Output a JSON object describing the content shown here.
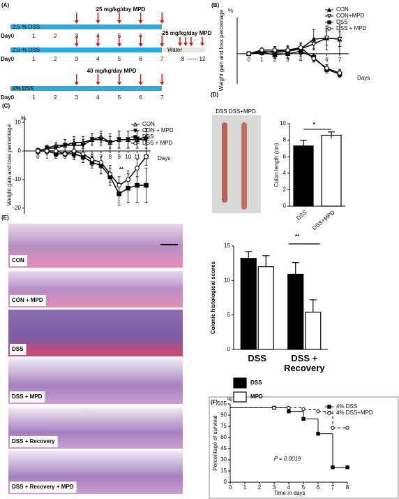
{
  "schematic": {
    "panel": "(A)",
    "day_label": "Day:",
    "rows": [
      {
        "bar_label": "2.5 % DSS",
        "drug_label": "25 mg/kg/day MPD",
        "days": [
          0,
          1,
          2,
          3,
          4,
          5,
          6,
          7
        ]
      },
      {
        "bar_label": "2.5 % DSS",
        "drug_label": "25 mg/kg/day MPD",
        "days": [
          0,
          1,
          2,
          3,
          4,
          5,
          6,
          7
        ],
        "recovery_label": "Water",
        "recovery_days": [
          8,
          12
        ],
        "recovery_separator": "------"
      },
      {
        "bar_label": "4% DSS",
        "drug_label": "40 mg/kg/day MPD",
        "days": [
          0,
          1,
          2,
          3,
          4,
          5,
          6,
          7
        ]
      }
    ]
  },
  "histology": {
    "panel": "(E)",
    "images": [
      "CON",
      "CON + MPD",
      "DSS",
      "DSS + MPD",
      "DSS + Recovery",
      "DSS + Recovery + MPD"
    ]
  },
  "chart_data": [
    {
      "type": "line",
      "panel": "(B)",
      "y_unit": "%",
      "ylabel": "Weight gain and loss percentage",
      "xlabel": "Days",
      "x": [
        0,
        1,
        2,
        3,
        4,
        5,
        6,
        7
      ],
      "xlim": [
        -0.9,
        7.7
      ],
      "xticks": [
        0,
        1,
        2,
        3,
        4,
        5,
        6,
        7
      ],
      "ylim": [
        -25,
        30
      ],
      "legend": "upper right",
      "series": [
        {
          "name": "CON",
          "color": "#000000",
          "marker": "triangle",
          "filled": true,
          "values": [
            0,
            1,
            2,
            3,
            4,
            12,
            13,
            12
          ],
          "errors": [
            1,
            2,
            3,
            4,
            5,
            8,
            10,
            12
          ]
        },
        {
          "name": "CON+MPD",
          "color": "#000000",
          "marker": "triangle-down",
          "filled": false,
          "values": [
            0,
            2,
            1,
            2,
            4,
            8,
            13,
            12
          ],
          "errors": [
            1,
            2,
            3,
            3,
            4,
            5,
            6,
            6
          ]
        },
        {
          "name": "DSS",
          "color": "#000000",
          "marker": "square",
          "filled": true,
          "values": [
            0,
            1,
            -1,
            0,
            2,
            -3,
            -13,
            -17
          ],
          "errors": [
            1,
            2,
            3,
            4,
            4,
            3,
            3,
            3
          ]
        },
        {
          "name": "DSS + MPD",
          "color": "#000000",
          "marker": "circle",
          "filled": false,
          "values": [
            0,
            3,
            3,
            3,
            5,
            -4,
            -12,
            -16
          ],
          "errors": [
            1,
            2,
            3,
            3,
            4,
            3,
            3,
            3
          ]
        }
      ]
    },
    {
      "type": "line",
      "panel": "(C)",
      "y_unit": "%",
      "ylabel": "Weight gain and loss percentage",
      "xlabel": "Days",
      "annotation": "**",
      "x": [
        0,
        1,
        2,
        3,
        4,
        5,
        6,
        7,
        8,
        9,
        10,
        11,
        12
      ],
      "xlim": [
        -1.5,
        12.5
      ],
      "xticks": [
        0,
        1,
        2,
        3,
        4,
        5,
        6,
        7,
        8,
        9,
        10,
        11,
        12
      ],
      "ylim": [
        -22,
        12
      ],
      "yticks": [
        -20,
        -10,
        0,
        10
      ],
      "legend": "upper right",
      "series": [
        {
          "name": "CON",
          "color": "#000000",
          "marker": "triangle",
          "filled": false,
          "values": [
            0,
            1,
            2,
            2,
            3,
            3,
            4,
            5,
            3,
            4,
            4,
            4,
            5
          ],
          "errors": [
            1,
            1,
            1,
            2,
            2,
            2,
            2,
            2,
            3,
            3,
            3,
            3,
            3
          ]
        },
        {
          "name": "CON + MPD",
          "color": "#000000",
          "marker": "triangle-down",
          "filled": true,
          "values": [
            0,
            1,
            1,
            2,
            2,
            2,
            4,
            4,
            3,
            4,
            4,
            4,
            4
          ],
          "errors": [
            1,
            1,
            1,
            2,
            2,
            2,
            2,
            2,
            2,
            3,
            3,
            3,
            3
          ]
        },
        {
          "name": "DSS",
          "color": "#000000",
          "marker": "square",
          "filled": true,
          "values": [
            0,
            0,
            -1,
            -1,
            -1,
            -2,
            -4,
            -5,
            -9,
            -15,
            -13,
            -12,
            -12
          ],
          "errors": [
            1,
            1,
            1,
            1,
            2,
            2,
            2,
            3,
            3,
            4,
            5,
            6,
            6
          ]
        },
        {
          "name": "DSS + MPD",
          "color": "#000000",
          "marker": "circle",
          "filled": false,
          "values": [
            0,
            0,
            0,
            -1,
            0,
            -1,
            -3,
            -4,
            -8,
            -12,
            -10,
            -6,
            -2
          ],
          "errors": [
            1,
            1,
            1,
            1,
            2,
            2,
            2,
            2,
            3,
            3,
            3,
            3,
            3
          ]
        }
      ]
    },
    {
      "type": "bar",
      "panel": "(D)",
      "image_title": "DSS DSS+MPD",
      "ylabel": "Colon length (cm)",
      "annotation": "*",
      "categories": [
        "DSS",
        "DSS+MPD"
      ],
      "values": [
        7.3,
        8.6
      ],
      "errors": [
        0.7,
        0.4
      ],
      "colors": [
        "#000000",
        "#ffffff"
      ],
      "ylim": [
        0,
        10
      ],
      "yticks": [
        0,
        2,
        4,
        6,
        8,
        10
      ]
    },
    {
      "type": "grouped_bar",
      "ylabel": "Colonic histological scores",
      "annotation": "**",
      "categories": [
        "DSS",
        "DSS + Recovery"
      ],
      "ylim": [
        0,
        15
      ],
      "yticks": [
        0,
        5,
        10,
        15
      ],
      "series": [
        {
          "name": "DSS",
          "color": "#000000",
          "values": [
            13.2,
            10.9
          ],
          "errors": [
            1.0,
            1.7
          ]
        },
        {
          "name": "MPD",
          "color": "#ffffff",
          "values": [
            12,
            5.4
          ],
          "errors": [
            1.6,
            1.8
          ]
        }
      ]
    },
    {
      "type": "step",
      "panel": "(F)",
      "y_unit": "%",
      "ylabel": "Percentage of survival",
      "xlabel": "Time in days",
      "annotation": "P = 0.0019",
      "xlim": [
        0,
        8
      ],
      "xticks": [
        0,
        1,
        2,
        3,
        4,
        5,
        6,
        7,
        8
      ],
      "ylim": [
        0,
        105
      ],
      "yticks": [
        0,
        15,
        30,
        45,
        60,
        75,
        90,
        105
      ],
      "legend": "upper right",
      "series": [
        {
          "name": "4% DSS",
          "color": "#000000",
          "dashed": false,
          "marker": "square",
          "filled": true,
          "x": [
            3,
            4,
            5,
            6,
            7,
            8
          ],
          "values": [
            100,
            95,
            85,
            65,
            20,
            20
          ]
        },
        {
          "name": "4% DSS+MPD",
          "color": "#000000",
          "dashed": true,
          "marker": "circle",
          "filled": false,
          "x": [
            3,
            4,
            5,
            6,
            7,
            8
          ],
          "values": [
            100,
            100,
            98,
            95,
            73,
            73
          ]
        }
      ]
    }
  ]
}
